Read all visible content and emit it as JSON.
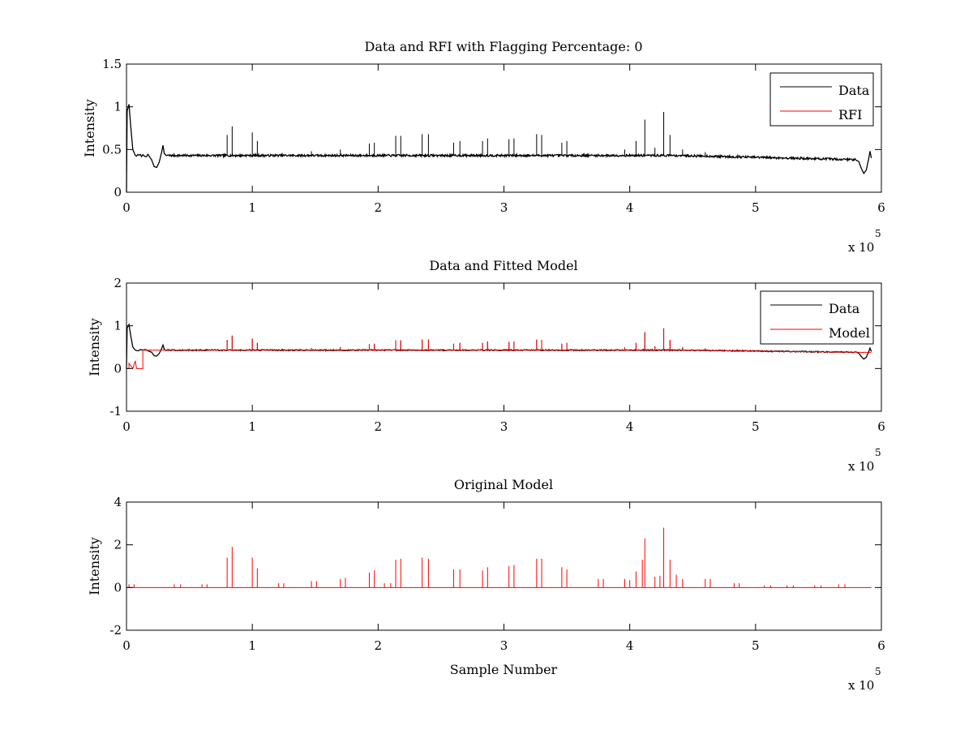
{
  "figure": {
    "background": "#ffffff"
  },
  "chart_data": [
    {
      "type": "line",
      "title": "Data and RFI with Flagging Percentage: 0",
      "xlabel": "",
      "ylabel": "Intensity",
      "xlim": [
        0,
        6
      ],
      "ylim": [
        0,
        1.5
      ],
      "xticks": [
        "0",
        "1",
        "2",
        "3",
        "4",
        "5",
        "6"
      ],
      "yticks": [
        "0",
        "0.5",
        "1",
        "1.5"
      ],
      "x_multiplier": "x 10",
      "x_multiplier_exp": "5",
      "legend": {
        "position": "top-right",
        "entries": [
          {
            "label": "Data",
            "color": "#000000"
          },
          {
            "label": "RFI",
            "color": "#ff0000"
          }
        ]
      },
      "series": [
        {
          "name": "Data",
          "color": "#000000",
          "baseline": 0.43,
          "spikes": [
            [
              0.8,
              0.67
            ],
            [
              0.84,
              0.77
            ],
            [
              1.0,
              0.7
            ],
            [
              1.04,
              0.6
            ],
            [
              1.47,
              0.48
            ],
            [
              1.7,
              0.5
            ],
            [
              1.93,
              0.57
            ],
            [
              1.97,
              0.58
            ],
            [
              2.14,
              0.66
            ],
            [
              2.18,
              0.66
            ],
            [
              2.35,
              0.68
            ],
            [
              2.4,
              0.68
            ],
            [
              2.6,
              0.58
            ],
            [
              2.65,
              0.6
            ],
            [
              2.83,
              0.6
            ],
            [
              2.87,
              0.63
            ],
            [
              3.04,
              0.62
            ],
            [
              3.08,
              0.63
            ],
            [
              3.26,
              0.68
            ],
            [
              3.3,
              0.67
            ],
            [
              3.46,
              0.58
            ],
            [
              3.5,
              0.6
            ],
            [
              3.96,
              0.5
            ],
            [
              4.05,
              0.6
            ],
            [
              4.12,
              0.85
            ],
            [
              4.2,
              0.52
            ],
            [
              4.27,
              0.94
            ],
            [
              4.32,
              0.67
            ],
            [
              4.42,
              0.5
            ],
            [
              4.6,
              0.47
            ],
            [
              4.86,
              0.44
            ]
          ]
        },
        {
          "name": "RFI",
          "color": "#ff0000",
          "spikes": []
        }
      ]
    },
    {
      "type": "line",
      "title": "Data and Fitted Model",
      "xlabel": "",
      "ylabel": "Intensity",
      "xlim": [
        0,
        6
      ],
      "ylim": [
        -1,
        2
      ],
      "xticks": [
        "0",
        "1",
        "2",
        "3",
        "4",
        "5",
        "6"
      ],
      "yticks": [
        "-1",
        "0",
        "1",
        "2"
      ],
      "x_multiplier": "x 10",
      "x_multiplier_exp": "5",
      "legend": {
        "position": "top-right",
        "entries": [
          {
            "label": "Data",
            "color": "#000000"
          },
          {
            "label": "Model",
            "color": "#ff0000"
          }
        ]
      },
      "series": [
        {
          "name": "Data",
          "color": "#000000",
          "baseline": 0.43
        },
        {
          "name": "Model",
          "color": "#ff0000",
          "baseline": 0.43,
          "spikes": [
            [
              0.8,
              0.67
            ],
            [
              0.84,
              0.77
            ],
            [
              1.0,
              0.7
            ],
            [
              1.04,
              0.6
            ],
            [
              1.47,
              0.48
            ],
            [
              1.7,
              0.5
            ],
            [
              1.93,
              0.57
            ],
            [
              1.97,
              0.58
            ],
            [
              2.14,
              0.66
            ],
            [
              2.18,
              0.66
            ],
            [
              2.35,
              0.68
            ],
            [
              2.4,
              0.68
            ],
            [
              2.6,
              0.58
            ],
            [
              2.65,
              0.6
            ],
            [
              2.83,
              0.6
            ],
            [
              2.87,
              0.63
            ],
            [
              3.04,
              0.62
            ],
            [
              3.08,
              0.63
            ],
            [
              3.26,
              0.68
            ],
            [
              3.3,
              0.67
            ],
            [
              3.46,
              0.58
            ],
            [
              3.5,
              0.6
            ],
            [
              3.96,
              0.5
            ],
            [
              4.05,
              0.6
            ],
            [
              4.12,
              0.85
            ],
            [
              4.2,
              0.52
            ],
            [
              4.27,
              0.94
            ],
            [
              4.32,
              0.67
            ],
            [
              4.42,
              0.5
            ],
            [
              4.6,
              0.47
            ],
            [
              4.86,
              0.44
            ]
          ]
        }
      ]
    },
    {
      "type": "line",
      "title": "Original Model",
      "xlabel": "Sample Number",
      "ylabel": "Intensity",
      "xlim": [
        0,
        6
      ],
      "ylim": [
        -2,
        4
      ],
      "xticks": [
        "0",
        "1",
        "2",
        "3",
        "4",
        "5",
        "6"
      ],
      "yticks": [
        "-2",
        "0",
        "2",
        "4"
      ],
      "x_multiplier": "x 10",
      "x_multiplier_exp": "5",
      "series": [
        {
          "name": "Model",
          "color": "#ff0000",
          "baseline": 0,
          "spikes": [
            [
              0.02,
              0.15
            ],
            [
              0.06,
              0.15
            ],
            [
              0.38,
              0.15
            ],
            [
              0.43,
              0.15
            ],
            [
              0.6,
              0.15
            ],
            [
              0.64,
              0.15
            ],
            [
              0.8,
              1.4
            ],
            [
              0.84,
              1.9
            ],
            [
              1.0,
              1.4
            ],
            [
              1.04,
              0.9
            ],
            [
              1.21,
              0.2
            ],
            [
              1.25,
              0.2
            ],
            [
              1.47,
              0.3
            ],
            [
              1.51,
              0.3
            ],
            [
              1.7,
              0.4
            ],
            [
              1.74,
              0.45
            ],
            [
              1.93,
              0.7
            ],
            [
              1.97,
              0.8
            ],
            [
              2.05,
              0.2
            ],
            [
              2.1,
              0.2
            ],
            [
              2.14,
              1.3
            ],
            [
              2.18,
              1.35
            ],
            [
              2.35,
              1.4
            ],
            [
              2.4,
              1.35
            ],
            [
              2.6,
              0.85
            ],
            [
              2.65,
              0.85
            ],
            [
              2.83,
              0.8
            ],
            [
              2.87,
              0.95
            ],
            [
              3.04,
              1.0
            ],
            [
              3.08,
              1.05
            ],
            [
              3.26,
              1.35
            ],
            [
              3.3,
              1.35
            ],
            [
              3.46,
              0.95
            ],
            [
              3.5,
              0.85
            ],
            [
              3.75,
              0.4
            ],
            [
              3.79,
              0.4
            ],
            [
              3.96,
              0.4
            ],
            [
              4.0,
              0.35
            ],
            [
              4.05,
              0.75
            ],
            [
              4.1,
              1.3
            ],
            [
              4.12,
              2.3
            ],
            [
              4.2,
              0.5
            ],
            [
              4.24,
              0.55
            ],
            [
              4.27,
              2.8
            ],
            [
              4.32,
              1.3
            ],
            [
              4.37,
              0.6
            ],
            [
              4.42,
              0.4
            ],
            [
              4.6,
              0.4
            ],
            [
              4.64,
              0.4
            ],
            [
              4.83,
              0.2
            ],
            [
              4.87,
              0.2
            ],
            [
              5.07,
              0.1
            ],
            [
              5.12,
              0.1
            ],
            [
              5.25,
              0.1
            ],
            [
              5.3,
              0.1
            ],
            [
              5.47,
              0.1
            ],
            [
              5.52,
              0.1
            ],
            [
              5.66,
              0.15
            ],
            [
              5.71,
              0.15
            ]
          ]
        }
      ]
    }
  ]
}
